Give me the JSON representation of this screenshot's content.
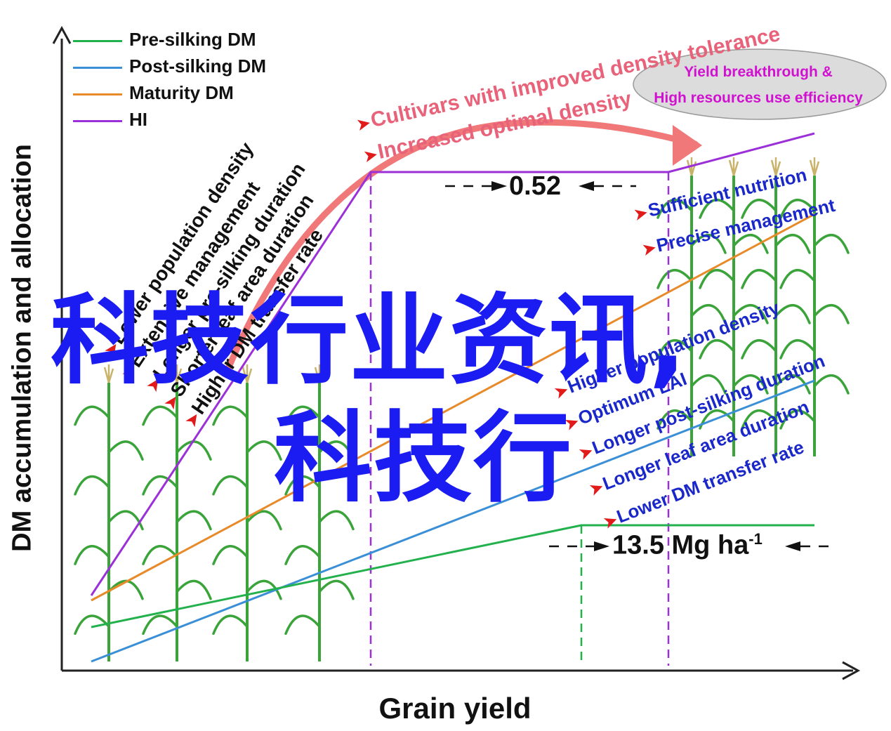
{
  "axes": {
    "y_title": "DM accumulation and allocation",
    "x_title": "Grain yield"
  },
  "legend": [
    {
      "label": "Pre-silking DM",
      "color": "#22b14c"
    },
    {
      "label": "Post-silking DM",
      "color": "#3a8fd6"
    },
    {
      "label": "Maturity DM",
      "color": "#e88a2a"
    },
    {
      "label": "HI",
      "color": "#9b30d9"
    }
  ],
  "left_annotations": [
    "Lower population density",
    "Extensive management",
    "Longer pre-silking duration",
    "Shorter leaf area duration",
    "Higher DM transfer rate"
  ],
  "top_annotations": [
    "Cultivars with improved density tolerance",
    "Increased optimal density"
  ],
  "right_annotations_top": [
    "Sufficient nutrition",
    "Precise management"
  ],
  "right_annotations_mid": [
    "Higher population density",
    "Optimum LAI",
    "Longer  post-silking duration",
    "Longer leaf area duration",
    "Lower DM transfer rate"
  ],
  "ellipse": {
    "line1": "Yield breakthrough &",
    "line2": "High resources use efficiency"
  },
  "values": {
    "hi_gap": "0.52",
    "yield_value": "13.5 Mg ha",
    "yield_exp": "-1"
  },
  "watermark": {
    "line1": "科技行业资讯,",
    "line2": "科技行"
  },
  "colors": {
    "arrow": "#f07878",
    "ellipse_fill": "#dcdcdc",
    "marker": "#e11a1a",
    "right_text": "#1a27c9",
    "top_text": "#e8627a",
    "plant": "#3aa33a"
  }
}
